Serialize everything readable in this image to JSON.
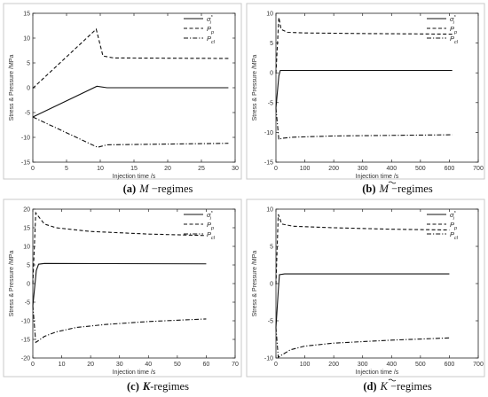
{
  "chart_data": [
    {
      "type": "line",
      "id": "a",
      "caption": {
        "tag": "(a)",
        "symbol": "M",
        "suffix": " −regimes",
        "accent": false
      },
      "xlabel": "Injection time /s",
      "ylabel": "Stress & Pressure /MPa",
      "xlim": [
        0,
        30
      ],
      "ylim": [
        -15,
        15
      ],
      "xticks": [
        0,
        5,
        10,
        15,
        20,
        25,
        30
      ],
      "yticks": [
        -15,
        -10,
        -5,
        0,
        5,
        10,
        15
      ],
      "legend_position": "top-right",
      "series": [
        {
          "name": "σ",
          "sub": "i",
          "sup": "*",
          "style": "solid",
          "points": [
            [
              0,
              -5.9
            ],
            [
              9.5,
              0.3
            ],
            [
              11,
              0.0
            ],
            [
              29,
              0.0
            ]
          ]
        },
        {
          "name": "P",
          "sub": "p",
          "sup": "",
          "style": "dashed",
          "points": [
            [
              0,
              -0.1
            ],
            [
              9.4,
              11.8
            ],
            [
              10.4,
              6.4
            ],
            [
              12,
              6.0
            ],
            [
              29,
              5.9
            ]
          ]
        },
        {
          "name": "P",
          "sub": "cl",
          "sup": "",
          "style": "dashdot",
          "points": [
            [
              0,
              -5.9
            ],
            [
              9.6,
              -12.0
            ],
            [
              11,
              -11.5
            ],
            [
              29,
              -11.2
            ]
          ]
        }
      ]
    },
    {
      "type": "line",
      "id": "b",
      "caption": {
        "tag": "(b)",
        "symbol": "M",
        "suffix": " −regimes",
        "accent": true
      },
      "xlabel": "Injection time /s",
      "ylabel": "Stress & Pressure /MPa",
      "xlim": [
        0,
        700
      ],
      "ylim": [
        -15,
        10
      ],
      "xticks": [
        0,
        100,
        200,
        300,
        400,
        500,
        600,
        700
      ],
      "yticks": [
        -15,
        -10,
        -5,
        0,
        5,
        10
      ],
      "legend_position": "top-right",
      "series": [
        {
          "name": "σ",
          "sub": "i",
          "sup": "*",
          "style": "solid",
          "points": [
            [
              0,
              -5.9
            ],
            [
              10,
              -0.5
            ],
            [
              15,
              0.4
            ],
            [
              100,
              0.4
            ],
            [
              610,
              0.4
            ]
          ]
        },
        {
          "name": "P",
          "sub": "p",
          "sup": "",
          "style": "dashed",
          "points": [
            [
              0,
              -0.1
            ],
            [
              10,
              9.3
            ],
            [
              18,
              7.3
            ],
            [
              40,
              6.8
            ],
            [
              100,
              6.7
            ],
            [
              300,
              6.6
            ],
            [
              610,
              6.5
            ]
          ]
        },
        {
          "name": "P",
          "sub": "cl",
          "sup": "",
          "style": "dashdot",
          "points": [
            [
              0,
              -5.9
            ],
            [
              10,
              -11.2
            ],
            [
              20,
              -11.0
            ],
            [
              60,
              -10.8
            ],
            [
              200,
              -10.6
            ],
            [
              400,
              -10.5
            ],
            [
              610,
              -10.4
            ]
          ]
        }
      ]
    },
    {
      "type": "line",
      "id": "c",
      "caption": {
        "tag": "(c)",
        "symbol": "K",
        "suffix": "-regimes",
        "accent": false
      },
      "xlabel": "Injection time /s",
      "ylabel": "Stress & Pressure /MPa",
      "xlim": [
        0,
        70
      ],
      "ylim": [
        -20,
        20
      ],
      "xticks": [
        0,
        10,
        20,
        30,
        40,
        50,
        60,
        70
      ],
      "yticks": [
        -20,
        -15,
        -10,
        -5,
        0,
        5,
        10,
        15,
        20
      ],
      "legend_position": "top-right",
      "series": [
        {
          "name": "σ",
          "sub": "i",
          "sup": "*",
          "style": "solid",
          "points": [
            [
              0,
              -6.0
            ],
            [
              1.2,
              3.5
            ],
            [
              2,
              5.2
            ],
            [
              4,
              5.4
            ],
            [
              60,
              5.3
            ]
          ]
        },
        {
          "name": "P",
          "sub": "p",
          "sup": "",
          "style": "dashed",
          "points": [
            [
              0,
              -0.1
            ],
            [
              1,
              19.0
            ],
            [
              2,
              18.0
            ],
            [
              4,
              16.0
            ],
            [
              8,
              15.0
            ],
            [
              20,
              14.0
            ],
            [
              40,
              13.3
            ],
            [
              60,
              12.9
            ]
          ]
        },
        {
          "name": "P",
          "sub": "cl",
          "sup": "",
          "style": "dashdot",
          "points": [
            [
              0,
              -5.9
            ],
            [
              1,
              -15.8
            ],
            [
              2,
              -15.3
            ],
            [
              4,
              -14.2
            ],
            [
              8,
              -13.0
            ],
            [
              15,
              -11.8
            ],
            [
              25,
              -11.0
            ],
            [
              40,
              -10.2
            ],
            [
              60,
              -9.5
            ]
          ]
        }
      ]
    },
    {
      "type": "line",
      "id": "d",
      "caption": {
        "tag": "(d)",
        "symbol": "K",
        "suffix": " −regimes",
        "accent": true
      },
      "xlabel": "Injection time /s",
      "ylabel": "Stress & Pressure /MPa",
      "xlim": [
        0,
        700
      ],
      "ylim": [
        -10,
        10
      ],
      "xticks": [
        0,
        100,
        200,
        300,
        400,
        500,
        600,
        700
      ],
      "yticks": [
        -10,
        -5,
        0,
        5,
        10
      ],
      "legend_position": "top-right",
      "series": [
        {
          "name": "σ",
          "sub": "i",
          "sup": "*",
          "style": "solid",
          "points": [
            [
              0,
              -5.9
            ],
            [
              8,
              -1.0
            ],
            [
              12,
              1.2
            ],
            [
              30,
              1.3
            ],
            [
              600,
              1.3
            ]
          ]
        },
        {
          "name": "P",
          "sub": "p",
          "sup": "",
          "style": "dashed",
          "points": [
            [
              0,
              -0.1
            ],
            [
              8,
              9.3
            ],
            [
              20,
              8.0
            ],
            [
              60,
              7.7
            ],
            [
              200,
              7.5
            ],
            [
              400,
              7.3
            ],
            [
              600,
              7.2
            ]
          ]
        },
        {
          "name": "P",
          "sub": "cl",
          "sup": "",
          "style": "dashdot",
          "points": [
            [
              0,
              -5.9
            ],
            [
              8,
              -9.9
            ],
            [
              20,
              -9.6
            ],
            [
              50,
              -8.9
            ],
            [
              100,
              -8.4
            ],
            [
              200,
              -8.0
            ],
            [
              400,
              -7.6
            ],
            [
              600,
              -7.3
            ]
          ]
        }
      ]
    }
  ]
}
